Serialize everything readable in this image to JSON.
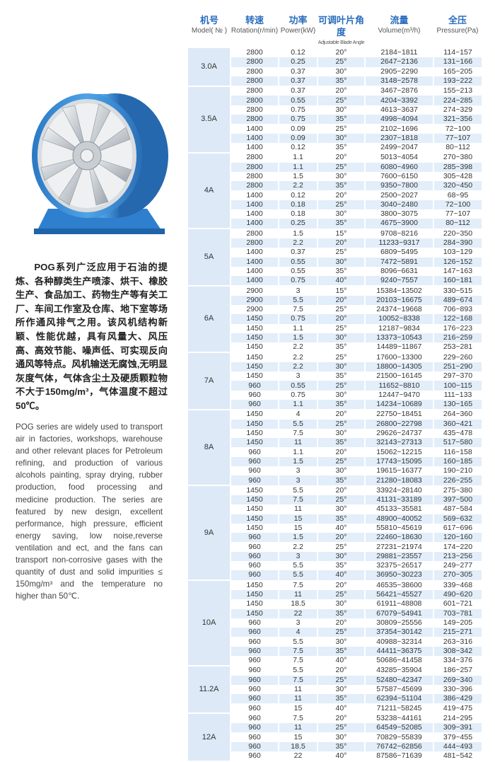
{
  "description_cn": "POG系列广泛应用于石油的提炼、各种醇类生产喷漆、烘干、橡胶生产、食品加工、药物生产等有关工厂、车间工作室及仓库、地下室等场所作通风排气之用。该风机结构新颖、性能优越，具有风量大、风压高、高效节能、噪声低、可实现反向通风等特点。风机输送无腐蚀,无明显灰度气体，气体含尘土及硬质颗粒物不大于150mg/m³，气体温度不超过50℃。",
  "description_en": "POG series are widely used to transport air in factories, workshops, warehouse and other relevant places for Petroleum refining, and production of various alcohols painting, spray drying, rubber production, food processing and medicine production. The series are featured by new design, excellent performance, high pressure, efficient energy saving, low noise,reverse ventilation and ect, and the fans can transport non-corrosive gases with the quantity of dust and solid impurities ≤ 150mg/m³ and the temperature no higher than 50℃.",
  "colors": {
    "header_zh": "#2a6cbf",
    "stripe": "#e2eef9",
    "model_bg": "#dde9f6",
    "fan_housing": "#3a8fd6"
  },
  "table": {
    "headers": [
      {
        "zh": "机号",
        "en": "Model( № )"
      },
      {
        "zh": "转速",
        "en": "Rotation(r/min)"
      },
      {
        "zh": "功率",
        "en": "Power(kW)"
      },
      {
        "zh": "可调叶片角度",
        "en": "Adjustable Blade Angle"
      },
      {
        "zh": "流量",
        "en": "Volume(m³/h)"
      },
      {
        "zh": "全压",
        "en": "Pressure(Pa)"
      }
    ],
    "groups": [
      {
        "model": "3.0A",
        "rows": [
          [
            "2800",
            "0.12",
            "20°",
            "2184~1811",
            "114~157"
          ],
          [
            "2800",
            "0.25",
            "25°",
            "2647~2136",
            "131~166"
          ],
          [
            "2800",
            "0.37",
            "30°",
            "2905~2290",
            "165~205"
          ],
          [
            "2800",
            "0.37",
            "35°",
            "3148~2578",
            "193~222"
          ]
        ]
      },
      {
        "model": "3.5A",
        "rows": [
          [
            "2800",
            "0.37",
            "20°",
            "3467~2876",
            "155~213"
          ],
          [
            "2800",
            "0.55",
            "25°",
            "4204~3392",
            "224~285"
          ],
          [
            "2800",
            "0.75",
            "30°",
            "4613~3637",
            "274~329"
          ],
          [
            "2800",
            "0.75",
            "35°",
            "4998~4094",
            "321~356"
          ],
          [
            "1400",
            "0.09",
            "25°",
            "2102~1696",
            "72~100"
          ],
          [
            "1400",
            "0.09",
            "30°",
            "2307~1818",
            "77~107"
          ],
          [
            "1400",
            "0.12",
            "35°",
            "2499~2047",
            "80~112"
          ]
        ]
      },
      {
        "model": "4A",
        "rows": [
          [
            "2800",
            "1.1",
            "20°",
            "5013~4054",
            "270~380"
          ],
          [
            "2800",
            "1.1",
            "25°",
            "6080~4960",
            "285~398"
          ],
          [
            "2800",
            "1.5",
            "30°",
            "7600~6150",
            "305~428"
          ],
          [
            "2800",
            "2.2",
            "35°",
            "9350~7800",
            "320~450"
          ],
          [
            "1400",
            "0.12",
            "20°",
            "2500~2027",
            "68~95"
          ],
          [
            "1400",
            "0.18",
            "25°",
            "3040~2480",
            "72~100"
          ],
          [
            "1400",
            "0.18",
            "30°",
            "3800~3075",
            "77~107"
          ],
          [
            "1400",
            "0.25",
            "35°",
            "4675~3900",
            "80~112"
          ]
        ]
      },
      {
        "model": "5A",
        "rows": [
          [
            "2800",
            "1.5",
            "15°",
            "9708~8216",
            "220~350"
          ],
          [
            "2800",
            "2.2",
            "20°",
            "11233~9317",
            "284~390"
          ],
          [
            "1400",
            "0.37",
            "25°",
            "6809~5495",
            "103~129"
          ],
          [
            "1400",
            "0.55",
            "30°",
            "7472~5891",
            "126~152"
          ],
          [
            "1400",
            "0.55",
            "35°",
            "8096~6631",
            "147~163"
          ],
          [
            "1400",
            "0.75",
            "40°",
            "9240~7557",
            "160~181"
          ]
        ]
      },
      {
        "model": "6A",
        "rows": [
          [
            "2900",
            "3",
            "15°",
            "15384~13502",
            "330~515"
          ],
          [
            "2900",
            "5.5",
            "20°",
            "20103~16675",
            "489~674"
          ],
          [
            "2900",
            "7.5",
            "25°",
            "24374~19668",
            "706~893"
          ],
          [
            "1450",
            "0.75",
            "20°",
            "10052~8338",
            "122~168"
          ],
          [
            "1450",
            "1.1",
            "25°",
            "12187~9834",
            "176~223"
          ],
          [
            "1450",
            "1.5",
            "30°",
            "13373~10543",
            "216~259"
          ],
          [
            "1450",
            "2.2",
            "35°",
            "14489~11867",
            "253~281"
          ]
        ]
      },
      {
        "model": "7A",
        "rows": [
          [
            "1450",
            "2.2",
            "25°",
            "17600~13300",
            "229~260"
          ],
          [
            "1450",
            "2.2",
            "30°",
            "18800~14305",
            "251~290"
          ],
          [
            "1450",
            "3",
            "35°",
            "21500~16145",
            "297~370"
          ],
          [
            "960",
            "0.55",
            "25°",
            "11652~8810",
            "100~115"
          ],
          [
            "960",
            "0.75",
            "30°",
            "12447~9470",
            "111~133"
          ],
          [
            "960",
            "1.1",
            "35°",
            "14234~10689",
            "130~165"
          ]
        ]
      },
      {
        "model": "8A",
        "rows": [
          [
            "1450",
            "4",
            "20°",
            "22750~18451",
            "264~360"
          ],
          [
            "1450",
            "5.5",
            "25°",
            "26800~22798",
            "360~421"
          ],
          [
            "1450",
            "7.5",
            "30°",
            "29626~24737",
            "435~478"
          ],
          [
            "1450",
            "11",
            "35°",
            "32143~27313",
            "517~580"
          ],
          [
            "960",
            "1.1",
            "20°",
            "15062~12215",
            "116~158"
          ],
          [
            "960",
            "1.5",
            "25°",
            "17743~15095",
            "160~185"
          ],
          [
            "960",
            "3",
            "30°",
            "19615~16377",
            "190~210"
          ],
          [
            "960",
            "3",
            "35°",
            "21280~18083",
            "226~255"
          ]
        ]
      },
      {
        "model": "9A",
        "rows": [
          [
            "1450",
            "5.5",
            "20°",
            "33924~28140",
            "275~380"
          ],
          [
            "1450",
            "7.5",
            "25°",
            "41131~33189",
            "397~500"
          ],
          [
            "1450",
            "11",
            "30°",
            "45133~35581",
            "487~584"
          ],
          [
            "1450",
            "15",
            "35°",
            "48900~40052",
            "569~632"
          ],
          [
            "1450",
            "15",
            "40°",
            "55810~45619",
            "617~696"
          ],
          [
            "960",
            "1.5",
            "20°",
            "22460~18630",
            "120~160"
          ],
          [
            "960",
            "2.2",
            "25°",
            "27231~21974",
            "174~220"
          ],
          [
            "960",
            "3",
            "30°",
            "29881~23557",
            "213~256"
          ],
          [
            "960",
            "5.5",
            "35°",
            "32375~26517",
            "249~277"
          ],
          [
            "960",
            "5.5",
            "40°",
            "36950~30223",
            "270~305"
          ]
        ]
      },
      {
        "model": "10A",
        "rows": [
          [
            "1450",
            "7.5",
            "20°",
            "46535~38600",
            "339~468"
          ],
          [
            "1450",
            "11",
            "25°",
            "56421~45527",
            "490~620"
          ],
          [
            "1450",
            "18.5",
            "30°",
            "61911~48808",
            "601~721"
          ],
          [
            "1450",
            "22",
            "35°",
            "67079~54941",
            "703~781"
          ],
          [
            "960",
            "3",
            "20°",
            "30809~25556",
            "149~205"
          ],
          [
            "960",
            "4",
            "25°",
            "37354~30142",
            "215~271"
          ],
          [
            "960",
            "5.5",
            "30°",
            "40988~32314",
            "263~316"
          ],
          [
            "960",
            "7.5",
            "35°",
            "44411~36375",
            "308~342"
          ],
          [
            "960",
            "7.5",
            "40°",
            "50686~41458",
            "334~376"
          ]
        ]
      },
      {
        "model": "11.2A",
        "rows": [
          [
            "960",
            "5.5",
            "20°",
            "43285~35904",
            "186~257"
          ],
          [
            "960",
            "7.5",
            "25°",
            "52480~42347",
            "269~340"
          ],
          [
            "960",
            "11",
            "30°",
            "57587~45699",
            "330~396"
          ],
          [
            "960",
            "11",
            "35°",
            "62394~51104",
            "386~429"
          ],
          [
            "960",
            "15",
            "40°",
            "71211~58245",
            "419~475"
          ]
        ]
      },
      {
        "model": "12A",
        "rows": [
          [
            "960",
            "7.5",
            "20°",
            "53238~44161",
            "214~295"
          ],
          [
            "960",
            "11",
            "25°",
            "64549~52085",
            "309~391"
          ],
          [
            "960",
            "15",
            "30°",
            "70829~55839",
            "379~455"
          ],
          [
            "960",
            "18.5",
            "35°",
            "76742~62856",
            "444~493"
          ],
          [
            "960",
            "22",
            "40°",
            "87586~71639",
            "481~542"
          ]
        ]
      }
    ]
  }
}
